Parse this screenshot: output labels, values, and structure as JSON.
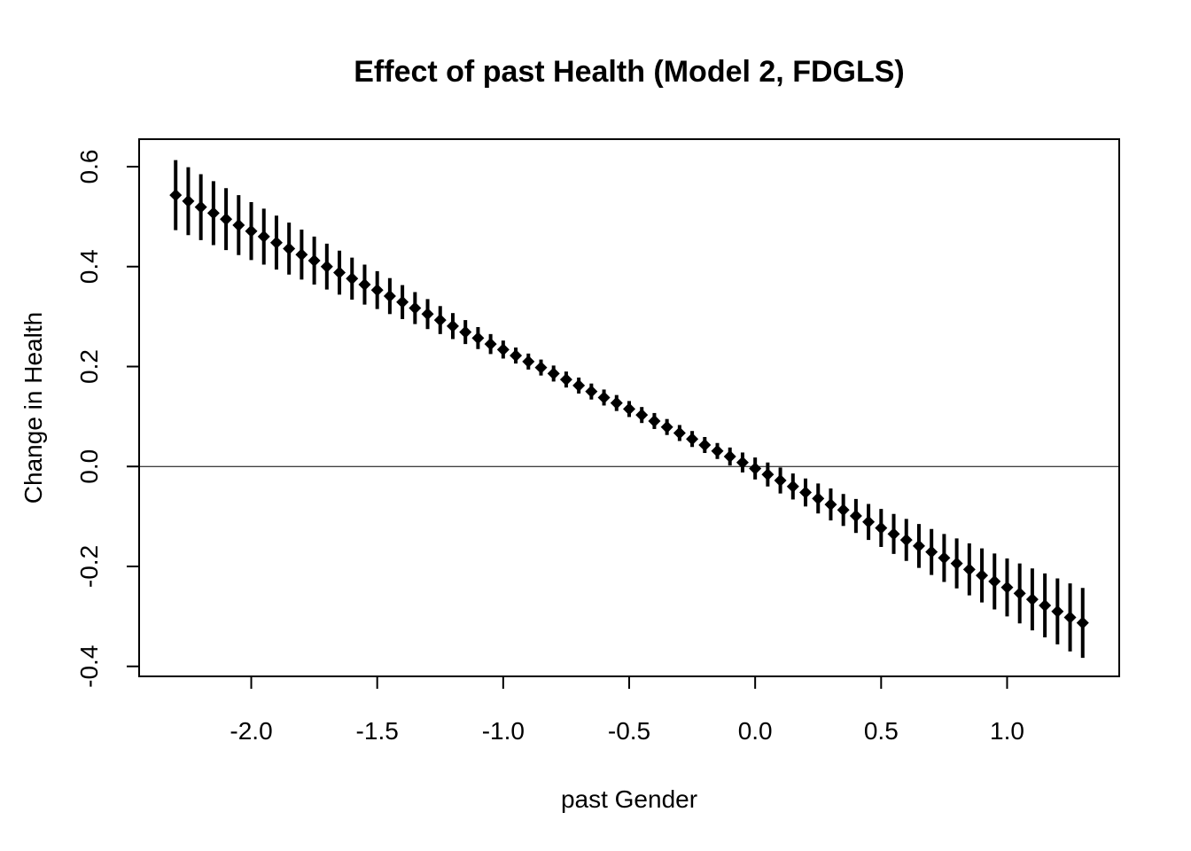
{
  "chart_data": {
    "type": "scatter",
    "title": "Effect of past Health (Model 2, FDGLS)",
    "xlabel": "past Gender",
    "ylabel": "Change in Health",
    "xlim": [
      -2.445,
      1.445
    ],
    "ylim": [
      -0.42,
      0.655
    ],
    "x_ticks": [
      -2.0,
      -1.5,
      -1.0,
      -0.5,
      0.0,
      0.5,
      1.0
    ],
    "x_tick_labels": [
      "-2.0",
      "-1.5",
      "-1.0",
      "-0.5",
      "0.0",
      "0.5",
      "1.0"
    ],
    "y_ticks": [
      -0.4,
      -0.2,
      0.0,
      0.2,
      0.4,
      0.6
    ],
    "y_tick_labels": [
      "-0.4",
      "-0.2",
      "0.0",
      "0.2",
      "0.4",
      "0.6"
    ],
    "reference_line_y": 0,
    "grid": false,
    "marker": "diamond",
    "error_bars": true,
    "x": [
      -2.3,
      -2.25,
      -2.2,
      -2.15,
      -2.1,
      -2.05,
      -2.0,
      -1.95,
      -1.9,
      -1.85,
      -1.8,
      -1.75,
      -1.7,
      -1.65,
      -1.6,
      -1.55,
      -1.5,
      -1.45,
      -1.4,
      -1.35,
      -1.3,
      -1.25,
      -1.2,
      -1.15,
      -1.1,
      -1.05,
      -1.0,
      -0.95,
      -0.9,
      -0.85,
      -0.8,
      -0.75,
      -0.7,
      -0.65,
      -0.6,
      -0.55,
      -0.5,
      -0.45,
      -0.4,
      -0.35,
      -0.3,
      -0.25,
      -0.2,
      -0.15,
      -0.1,
      -0.05,
      0.0,
      0.05,
      0.1,
      0.15,
      0.2,
      0.25,
      0.3,
      0.35,
      0.4,
      0.45,
      0.5,
      0.55,
      0.6,
      0.65,
      0.7,
      0.75,
      0.8,
      0.85,
      0.9,
      0.95,
      1.0,
      1.05,
      1.1,
      1.15,
      1.2,
      1.25,
      1.3
    ],
    "y": [
      0.543,
      0.531,
      0.519,
      0.507,
      0.495,
      0.483,
      0.471,
      0.46,
      0.448,
      0.436,
      0.424,
      0.412,
      0.4,
      0.388,
      0.376,
      0.364,
      0.353,
      0.341,
      0.329,
      0.317,
      0.305,
      0.293,
      0.281,
      0.269,
      0.257,
      0.245,
      0.234,
      0.222,
      0.21,
      0.198,
      0.186,
      0.174,
      0.162,
      0.15,
      0.138,
      0.127,
      0.115,
      0.103,
      0.091,
      0.079,
      0.067,
      0.055,
      0.043,
      0.031,
      0.02,
      0.008,
      -0.004,
      -0.016,
      -0.028,
      -0.04,
      -0.052,
      -0.064,
      -0.076,
      -0.087,
      -0.099,
      -0.111,
      -0.123,
      -0.135,
      -0.147,
      -0.159,
      -0.171,
      -0.183,
      -0.194,
      -0.206,
      -0.218,
      -0.23,
      -0.242,
      -0.254,
      -0.266,
      -0.278,
      -0.29,
      -0.302,
      -0.313
    ],
    "y_lower": [
      0.473,
      0.463,
      0.453,
      0.443,
      0.433,
      0.423,
      0.413,
      0.404,
      0.394,
      0.384,
      0.374,
      0.364,
      0.354,
      0.344,
      0.334,
      0.324,
      0.315,
      0.305,
      0.295,
      0.285,
      0.275,
      0.265,
      0.255,
      0.245,
      0.235,
      0.225,
      0.216,
      0.206,
      0.194,
      0.182,
      0.17,
      0.158,
      0.146,
      0.134,
      0.122,
      0.111,
      0.099,
      0.087,
      0.075,
      0.063,
      0.051,
      0.039,
      0.027,
      0.015,
      0.002,
      -0.012,
      -0.026,
      -0.04,
      -0.054,
      -0.066,
      -0.08,
      -0.094,
      -0.108,
      -0.119,
      -0.133,
      -0.147,
      -0.161,
      -0.175,
      -0.189,
      -0.203,
      -0.217,
      -0.231,
      -0.244,
      -0.258,
      -0.272,
      -0.286,
      -0.3,
      -0.314,
      -0.328,
      -0.342,
      -0.356,
      -0.37,
      -0.383
    ],
    "y_upper": [
      0.613,
      0.599,
      0.585,
      0.571,
      0.557,
      0.543,
      0.529,
      0.516,
      0.502,
      0.488,
      0.474,
      0.46,
      0.446,
      0.432,
      0.418,
      0.404,
      0.391,
      0.377,
      0.363,
      0.349,
      0.335,
      0.321,
      0.307,
      0.293,
      0.279,
      0.265,
      0.252,
      0.238,
      0.226,
      0.214,
      0.202,
      0.19,
      0.178,
      0.166,
      0.154,
      0.143,
      0.131,
      0.119,
      0.107,
      0.095,
      0.083,
      0.071,
      0.059,
      0.047,
      0.038,
      0.028,
      0.018,
      0.008,
      -0.002,
      -0.014,
      -0.024,
      -0.034,
      -0.044,
      -0.055,
      -0.065,
      -0.075,
      -0.085,
      -0.095,
      -0.105,
      -0.115,
      -0.125,
      -0.135,
      -0.144,
      -0.154,
      -0.164,
      -0.174,
      -0.184,
      -0.194,
      -0.204,
      -0.214,
      -0.224,
      -0.234,
      -0.243
    ],
    "colors": {
      "marks": "#000000",
      "background": "#ffffff"
    }
  }
}
